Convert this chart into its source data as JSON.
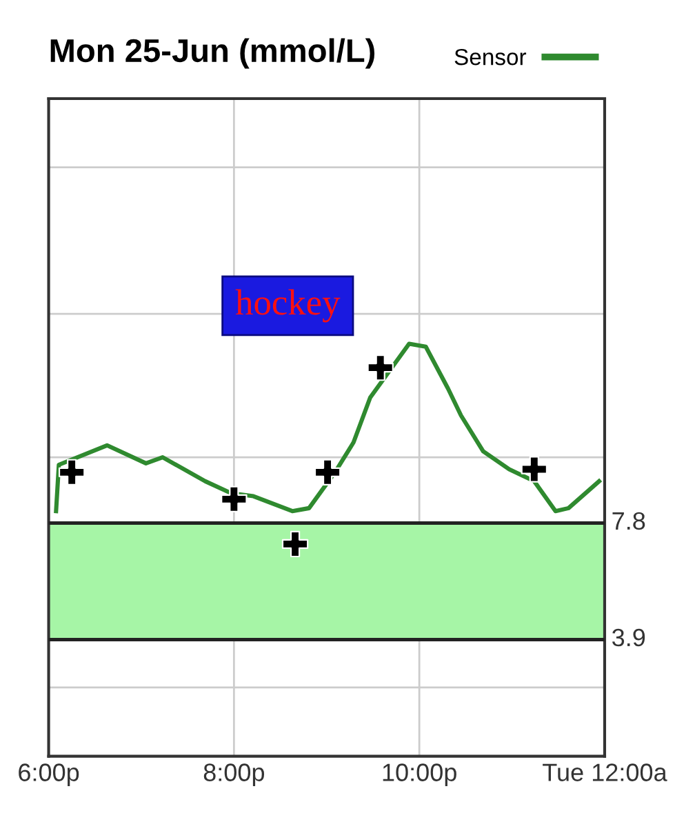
{
  "chart_data": {
    "type": "line",
    "title": "Mon 25-Jun (mmol/L)",
    "annotations": [
      "hockey"
    ],
    "series": [
      {
        "name": "Sensor",
        "type": "line",
        "color": "#2f8a2f",
        "x": [
          18.08,
          18.11,
          18.63,
          19.05,
          19.23,
          19.69,
          19.97,
          20.21,
          20.63,
          20.81,
          21.09,
          21.29,
          21.47,
          21.89,
          22.07,
          22.31,
          22.45,
          22.69,
          22.97,
          23.24,
          23.47,
          23.61,
          23.94
        ],
        "values": [
          8.2,
          9.75,
          10.4,
          9.8,
          10.0,
          9.2,
          8.8,
          8.7,
          8.2,
          8.3,
          9.5,
          10.5,
          12.0,
          13.8,
          13.7,
          12.3,
          11.4,
          10.2,
          9.6,
          9.2,
          8.2,
          8.3,
          9.2
        ]
      },
      {
        "type": "scatter",
        "color": "#000000",
        "marker": "cross",
        "x": [
          18.25,
          20.0,
          20.66,
          21.01,
          21.58,
          23.24
        ],
        "values": [
          9.5,
          8.6,
          7.1,
          9.5,
          13.0,
          9.6
        ]
      }
    ],
    "xlim": [
      18,
      24
    ],
    "xticks": [
      {
        "value": 18,
        "label": "6:00p"
      },
      {
        "value": 20,
        "label": "8:00p"
      },
      {
        "value": 22,
        "label": "10:00p"
      },
      {
        "value": 24,
        "label": "Tue 12:00a"
      }
    ],
    "ylim": [
      0,
      22
    ],
    "yticks": [
      {
        "value": 2.3,
        "label": null
      },
      {
        "value": 10,
        "label": null
      },
      {
        "value": 14.8,
        "label": null
      },
      {
        "value": 19.7,
        "label": null
      }
    ],
    "bands": [
      {
        "axis": "y",
        "from": 3.9,
        "to": 7.8,
        "color": "#a6f5a6"
      }
    ],
    "ref_lines": [
      {
        "axis": "y",
        "value": 7.8,
        "label": "7.8",
        "color": "#222222"
      },
      {
        "axis": "y",
        "value": 3.9,
        "label": "3.9",
        "color": "#222222"
      }
    ],
    "grid": true,
    "legend": "top right",
    "line_style": "solid"
  }
}
